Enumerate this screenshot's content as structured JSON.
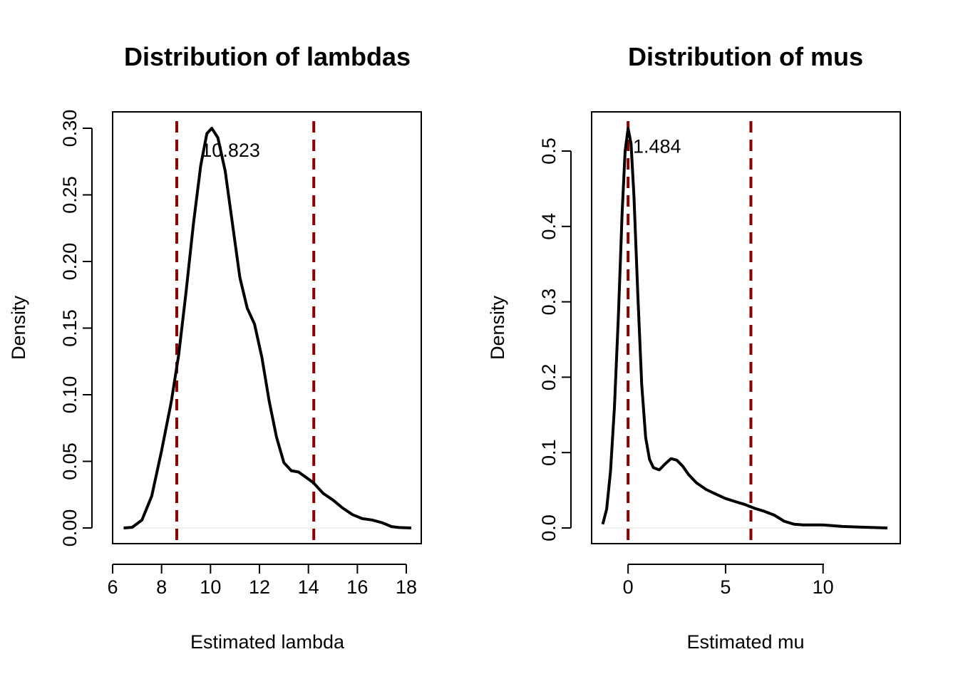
{
  "chart_data": [
    {
      "type": "line",
      "title": "Distribution of lambdas",
      "xlabel": "Estimated lambda",
      "ylabel": "Density",
      "xlim": [
        6,
        18
      ],
      "ylim": [
        0,
        0.3
      ],
      "xticks": [
        "6",
        "8",
        "10",
        "12",
        "14",
        "16",
        "18"
      ],
      "yticks": [
        "0.00",
        "0.05",
        "0.10",
        "0.15",
        "0.20",
        "0.25",
        "0.30"
      ],
      "x": [
        6.45,
        6.8,
        7.2,
        7.6,
        8.0,
        8.4,
        8.7,
        9.0,
        9.3,
        9.6,
        9.85,
        10.05,
        10.3,
        10.6,
        10.9,
        11.2,
        11.5,
        11.8,
        12.1,
        12.4,
        12.7,
        13.0,
        13.3,
        13.6,
        13.9,
        14.2,
        14.6,
        15.0,
        15.4,
        15.8,
        16.2,
        16.6,
        17.0,
        17.4,
        17.7,
        18.2
      ],
      "series": [
        {
          "values": [
            0.0,
            0.0005,
            0.006,
            0.024,
            0.058,
            0.095,
            0.13,
            0.177,
            0.228,
            0.272,
            0.296,
            0.3,
            0.293,
            0.268,
            0.228,
            0.188,
            0.165,
            0.153,
            0.128,
            0.095,
            0.068,
            0.049,
            0.043,
            0.042,
            0.038,
            0.034,
            0.026,
            0.021,
            0.015,
            0.01,
            0.007,
            0.006,
            0.004,
            0.001,
            0.0003,
            0.0
          ]
        }
      ],
      "vlines": [
        8.62,
        14.22
      ],
      "vline_color": "#8b0000",
      "annotation": "10.823",
      "annotation_x": 10.823,
      "annotation_y": 0.284
    },
    {
      "type": "line",
      "title": "Distribution of mus",
      "xlabel": "Estimated mu",
      "ylabel": "Density",
      "xlim": [
        -1.87,
        13.96
      ],
      "ylim": [
        0,
        0.5
      ],
      "xticks": [
        "0",
        "5",
        "10"
      ],
      "yticks": [
        "0.0",
        "0.1",
        "0.2",
        "0.3",
        "0.4",
        "0.5"
      ],
      "x": [
        -1.3,
        -1.1,
        -0.9,
        -0.7,
        -0.5,
        -0.3,
        -0.15,
        0.0,
        0.15,
        0.3,
        0.5,
        0.7,
        0.9,
        1.1,
        1.3,
        1.6,
        1.9,
        2.2,
        2.5,
        2.8,
        3.1,
        3.5,
        4.0,
        4.5,
        5.0,
        5.5,
        6.0,
        6.5,
        7.0,
        7.5,
        8.0,
        8.5,
        9.0,
        10.0,
        11.0,
        12.0,
        13.3
      ],
      "series": [
        {
          "values": [
            0.005,
            0.025,
            0.075,
            0.16,
            0.28,
            0.42,
            0.5,
            0.53,
            0.51,
            0.44,
            0.31,
            0.19,
            0.12,
            0.091,
            0.08,
            0.077,
            0.085,
            0.092,
            0.09,
            0.082,
            0.071,
            0.06,
            0.051,
            0.045,
            0.039,
            0.035,
            0.031,
            0.026,
            0.022,
            0.017,
            0.009,
            0.005,
            0.004,
            0.004,
            0.002,
            0.001,
            0.0
          ]
        }
      ],
      "vlines": [
        0.0,
        6.3
      ],
      "vline_color": "#8b0000",
      "annotation": "1.484",
      "annotation_x": 1.484,
      "annotation_y": 0.507
    }
  ]
}
